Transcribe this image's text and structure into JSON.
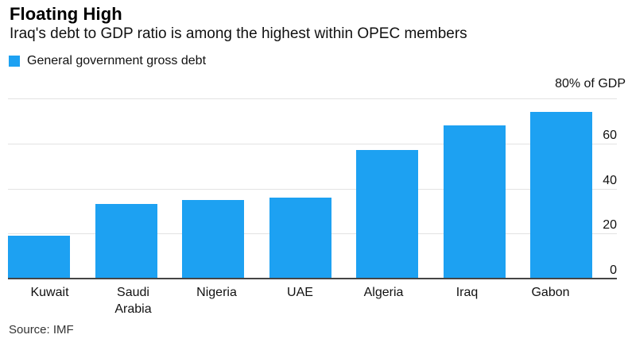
{
  "header": {
    "title": "Floating High",
    "subtitle": "Iraq's debt to GDP ratio is among the highest within OPEC members"
  },
  "legend": {
    "label": "General government gross debt",
    "swatch_color": "#1da1f2"
  },
  "axis": {
    "unit_label": "80% of GDP",
    "tick_labels": [
      "0",
      "20",
      "40",
      "60"
    ]
  },
  "source": "Source: IMF",
  "colors": {
    "bar": "#1da1f2",
    "gridline": "#e3e3e3",
    "axis_line": "#454545"
  },
  "chart_data": {
    "type": "bar",
    "title": "Floating High",
    "subtitle": "Iraq's debt to GDP ratio is among the highest within OPEC members",
    "series_name": "General government gross debt",
    "categories": [
      "Kuwait",
      "Saudi Arabia",
      "Nigeria",
      "UAE",
      "Algeria",
      "Iraq",
      "Gabon"
    ],
    "values": [
      19,
      33,
      35,
      36,
      57,
      68,
      74
    ],
    "xlabel": "",
    "ylabel": "80% of GDP",
    "ylim": [
      0,
      80
    ],
    "yticks": [
      0,
      20,
      40,
      60
    ],
    "grid_values": [
      20,
      40,
      60,
      80
    ],
    "grid": true,
    "axis_side": "right",
    "legend_position": "top-left",
    "source": "Source: IMF"
  }
}
